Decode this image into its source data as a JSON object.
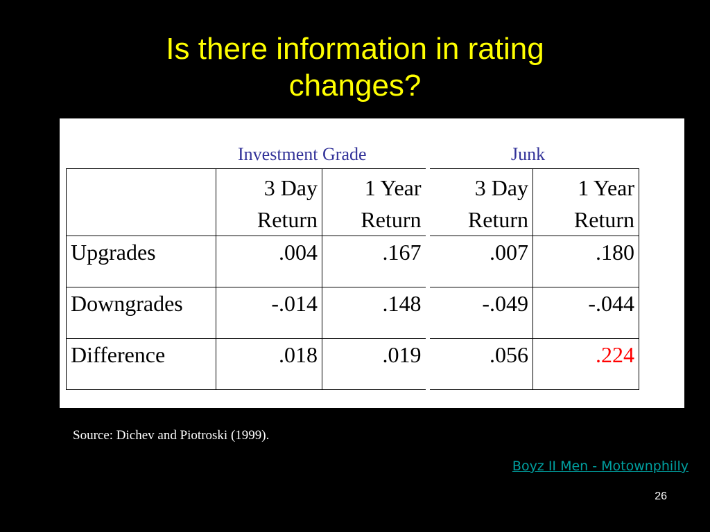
{
  "slide": {
    "title_line1": "Is there information in rating",
    "title_line2": "changes?",
    "groups": {
      "investment_grade": "Investment Grade",
      "junk": "Junk"
    },
    "table": {
      "headers": [
        {
          "line1": "",
          "line2": ""
        },
        {
          "line1": "3 Day",
          "line2": "Return"
        },
        {
          "line1": "1 Year",
          "line2": "Return"
        },
        {
          "line1": "3 Day",
          "line2": "Return"
        },
        {
          "line1": "1 Year",
          "line2": "Return"
        }
      ],
      "rows": [
        {
          "label": "Upgrades",
          "values": [
            ".004",
            ".167",
            ".007",
            ".180"
          ]
        },
        {
          "label": "Downgrades",
          "values": [
            "-.014",
            ".148",
            "-.049",
            "-.044"
          ]
        },
        {
          "label": "Difference",
          "values": [
            ".018",
            ".019",
            ".056",
            ".224"
          ]
        }
      ]
    },
    "source": "Source: Dichev and Piotroski (1999).",
    "link_text": "Boyz II Men - Motownphilly",
    "page_number": "26",
    "colors": {
      "title": "#FFFF00",
      "group_label": "#333399",
      "highlight": "#FF0000",
      "link": "#00A0A0"
    }
  }
}
